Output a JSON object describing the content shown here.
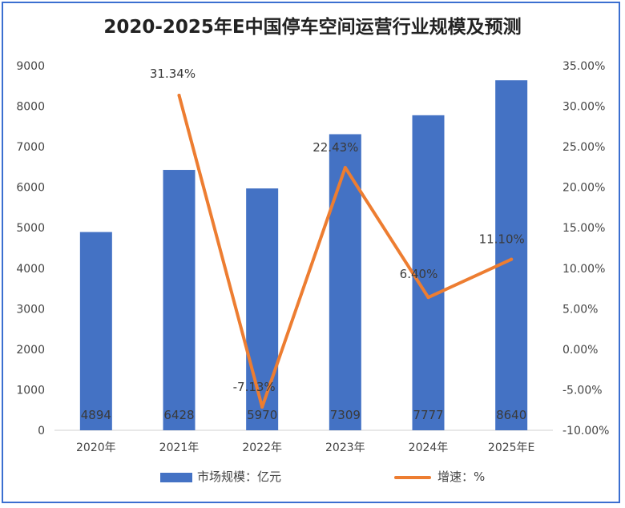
{
  "title": "2020-2025年E中国停车空间运营行业规模及预测",
  "colors": {
    "bar": "#4472c4",
    "line": "#ed7d31",
    "border": "#3b6fd0"
  },
  "legend": {
    "bar_label": "市场规模：亿元",
    "line_label": "增速：%"
  },
  "axis_left_ticks": [
    "0",
    "1000",
    "2000",
    "3000",
    "4000",
    "5000",
    "6000",
    "7000",
    "8000",
    "9000"
  ],
  "axis_right_ticks": [
    "-10.00%",
    "-5.00%",
    "0.00%",
    "5.00%",
    "10.00%",
    "15.00%",
    "20.00%",
    "25.00%",
    "30.00%",
    "35.00%"
  ],
  "chart_data": {
    "type": "bar",
    "title": "2020-2025年E中国停车空间运营行业规模及预测",
    "categories": [
      "2020年",
      "2021年",
      "2022年",
      "2023年",
      "2024年",
      "2025年E"
    ],
    "series": [
      {
        "name": "市场规模：亿元",
        "type": "bar",
        "axis": "left",
        "values": [
          4894,
          6428,
          5970,
          7309,
          7777,
          8640
        ]
      },
      {
        "name": "增速：%",
        "type": "line",
        "axis": "right",
        "values": [
          null,
          31.34,
          -7.13,
          22.43,
          6.4,
          11.1
        ],
        "labels": [
          "",
          "31.34%",
          "-7.13%",
          "22.43%",
          "6.40%",
          "11.10%"
        ]
      }
    ],
    "ylim_left": [
      0,
      9000
    ],
    "ylim_right": [
      -10,
      35
    ],
    "grid": false,
    "legend_position": "bottom"
  }
}
